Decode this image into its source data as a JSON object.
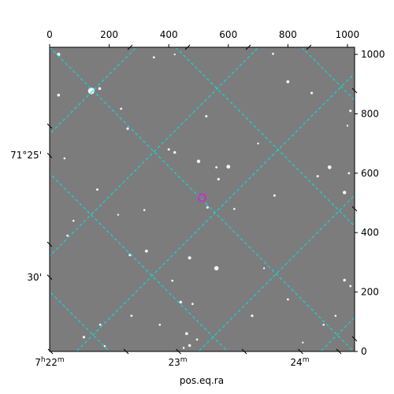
{
  "chart_data": {
    "type": "astronomical_image",
    "xlabel": "pos.eq.ra",
    "ylabel": "",
    "pixel_axes": {
      "xlim": [
        0,
        1024
      ],
      "ylim": [
        0,
        1024
      ],
      "top_ticks": [
        {
          "value": 0,
          "label": "0"
        },
        {
          "value": 200,
          "label": "200"
        },
        {
          "value": 400,
          "label": "400"
        },
        {
          "value": 600,
          "label": "600"
        },
        {
          "value": 800,
          "label": "800"
        },
        {
          "value": 1000,
          "label": "1000"
        }
      ],
      "right_ticks": [
        {
          "value": 0,
          "label": "0"
        },
        {
          "value": 200,
          "label": "200"
        },
        {
          "value": 400,
          "label": "400"
        },
        {
          "value": 600,
          "label": "600"
        },
        {
          "value": 800,
          "label": "800"
        },
        {
          "value": 1000,
          "label": "1000"
        }
      ]
    },
    "world_axes": {
      "bottom_ticks": [
        {
          "px": 0,
          "label_main": "7",
          "label_sup1": "h",
          "label_num": "22",
          "label_sup2": "m"
        },
        {
          "px": 430,
          "label_main": "",
          "label_sup1": "",
          "label_num": "23",
          "label_sup2": "m"
        },
        {
          "px": 840,
          "label_main": "",
          "label_sup1": "",
          "label_num": "24",
          "label_sup2": "m"
        }
      ],
      "left_ticks": [
        {
          "py": 660,
          "label": "71°25'"
        },
        {
          "py": 250,
          "label": "30'"
        }
      ]
    },
    "grid": true,
    "grid_color": "#00e5e5",
    "image_color": "#7c7c7c",
    "target_marker": {
      "x": 512,
      "y": 518,
      "color": "#d81fd8"
    },
    "stars": [
      {
        "x": 30,
        "y": 1000,
        "r": 2.2
      },
      {
        "x": 140,
        "y": 877,
        "r": 4.2
      },
      {
        "x": 168,
        "y": 885,
        "r": 1.8
      },
      {
        "x": 30,
        "y": 863,
        "r": 1.8
      },
      {
        "x": 240,
        "y": 817,
        "r": 1.4
      },
      {
        "x": 262,
        "y": 750,
        "r": 1.6
      },
      {
        "x": 350,
        "y": 990,
        "r": 1.4
      },
      {
        "x": 420,
        "y": 1000,
        "r": 1.2
      },
      {
        "x": 400,
        "y": 680,
        "r": 1.5
      },
      {
        "x": 420,
        "y": 670,
        "r": 1.7
      },
      {
        "x": 500,
        "y": 640,
        "r": 2.2
      },
      {
        "x": 526,
        "y": 792,
        "r": 1.5
      },
      {
        "x": 600,
        "y": 622,
        "r": 2.4
      },
      {
        "x": 560,
        "y": 620,
        "r": 1.4
      },
      {
        "x": 567,
        "y": 580,
        "r": 1.6
      },
      {
        "x": 700,
        "y": 700,
        "r": 1.2
      },
      {
        "x": 750,
        "y": 1002,
        "r": 1.4
      },
      {
        "x": 800,
        "y": 908,
        "r": 1.9
      },
      {
        "x": 880,
        "y": 870,
        "r": 1.6
      },
      {
        "x": 940,
        "y": 620,
        "r": 2.4
      },
      {
        "x": 900,
        "y": 590,
        "r": 1.5
      },
      {
        "x": 990,
        "y": 535,
        "r": 2.2
      },
      {
        "x": 1005,
        "y": 600,
        "r": 1.4
      },
      {
        "x": 1010,
        "y": 810,
        "r": 1.6
      },
      {
        "x": 530,
        "y": 485,
        "r": 1.6
      },
      {
        "x": 755,
        "y": 525,
        "r": 1.5
      },
      {
        "x": 50,
        "y": 650,
        "r": 1.3
      },
      {
        "x": 160,
        "y": 545,
        "r": 1.5
      },
      {
        "x": 80,
        "y": 440,
        "r": 1.3
      },
      {
        "x": 230,
        "y": 460,
        "r": 1.2
      },
      {
        "x": 318,
        "y": 476,
        "r": 1.3
      },
      {
        "x": 60,
        "y": 390,
        "r": 1.4
      },
      {
        "x": 270,
        "y": 325,
        "r": 1.7
      },
      {
        "x": 325,
        "y": 338,
        "r": 1.9
      },
      {
        "x": 470,
        "y": 315,
        "r": 2.0
      },
      {
        "x": 560,
        "y": 280,
        "r": 2.8
      },
      {
        "x": 412,
        "y": 238,
        "r": 1.4
      },
      {
        "x": 440,
        "y": 166,
        "r": 1.8
      },
      {
        "x": 480,
        "y": 160,
        "r": 1.4
      },
      {
        "x": 275,
        "y": 120,
        "r": 1.4
      },
      {
        "x": 370,
        "y": 90,
        "r": 1.3
      },
      {
        "x": 170,
        "y": 90,
        "r": 1.4
      },
      {
        "x": 115,
        "y": 48,
        "r": 1.6
      },
      {
        "x": 185,
        "y": 18,
        "r": 1.3
      },
      {
        "x": 460,
        "y": 60,
        "r": 1.9
      },
      {
        "x": 470,
        "y": 20,
        "r": 1.8
      },
      {
        "x": 450,
        "y": 12,
        "r": 1.3
      },
      {
        "x": 495,
        "y": 40,
        "r": 1.4
      },
      {
        "x": 680,
        "y": 120,
        "r": 1.6
      },
      {
        "x": 720,
        "y": 280,
        "r": 1.2
      },
      {
        "x": 800,
        "y": 175,
        "r": 1.4
      },
      {
        "x": 990,
        "y": 240,
        "r": 1.8
      },
      {
        "x": 1010,
        "y": 220,
        "r": 1.4
      },
      {
        "x": 920,
        "y": 90,
        "r": 1.3
      },
      {
        "x": 850,
        "y": 30,
        "r": 1.2
      },
      {
        "x": 620,
        "y": 480,
        "r": 1.3
      },
      {
        "x": 1000,
        "y": 760,
        "r": 1.2
      },
      {
        "x": 960,
        "y": 120,
        "r": 1.3
      }
    ]
  }
}
